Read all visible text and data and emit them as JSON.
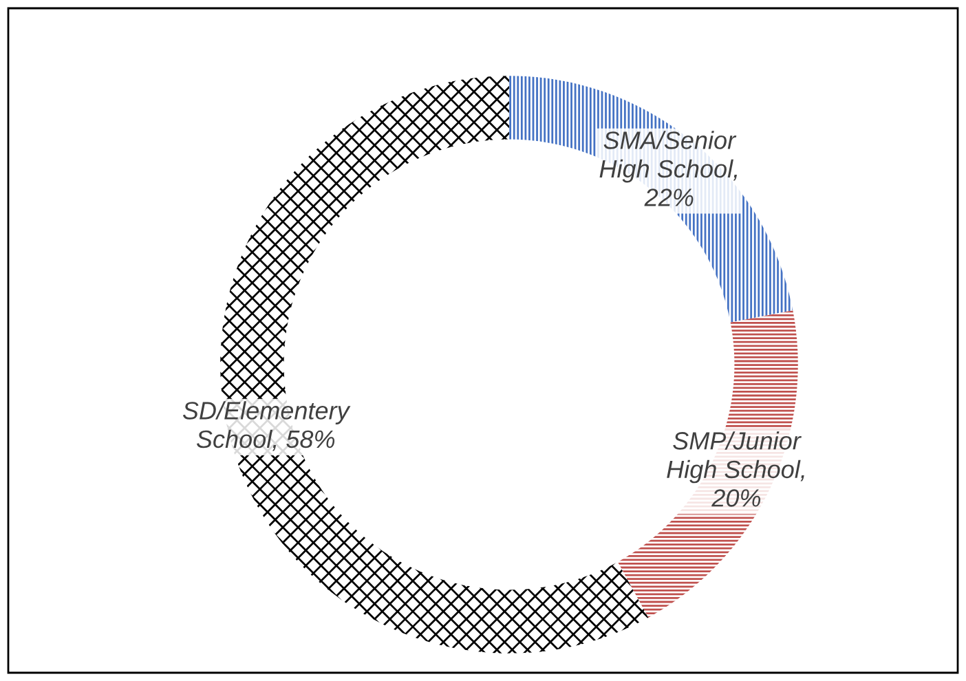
{
  "chart_data": {
    "type": "donut",
    "categories": [
      "SMA/Senior High School",
      "SMP/Junior High School",
      "SD/Elementery School"
    ],
    "values": [
      22,
      20,
      58
    ],
    "colors": [
      "#4472c4",
      "#c0504d",
      "#000000"
    ],
    "value_labels": [
      ", 22%",
      ", 20%",
      ", 58%"
    ],
    "legend": false
  }
}
